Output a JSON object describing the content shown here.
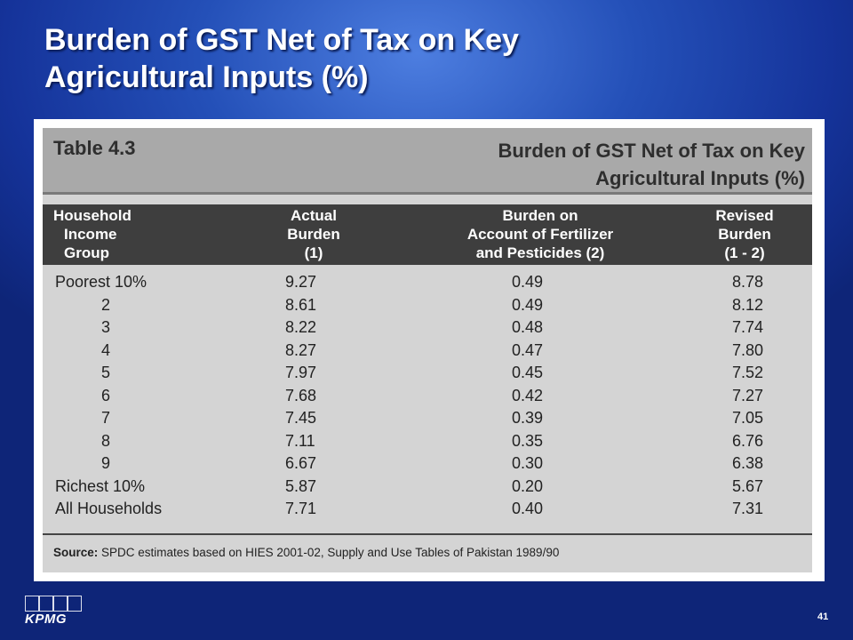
{
  "slide": {
    "title_line1": "Burden of GST Net of Tax on Key",
    "title_line2": "Agricultural Inputs (%)",
    "page_number": "41"
  },
  "table": {
    "number": "Table 4.3",
    "title_line1": "Burden of GST Net of Tax on Key",
    "title_line2": "Agricultural Inputs (%)",
    "headers": [
      [
        "Household",
        "Income",
        "Group"
      ],
      [
        "Actual",
        "Burden",
        "(1)"
      ],
      [
        "Burden on",
        "Account of Fertilizer",
        "and Pesticides (2)"
      ],
      [
        "Revised",
        "Burden",
        "(1 - 2)"
      ]
    ],
    "rows": [
      [
        "Poorest 10%",
        "9.27",
        "0.49",
        "8.78"
      ],
      [
        "2",
        "8.61",
        "0.49",
        "8.12"
      ],
      [
        "3",
        "8.22",
        "0.48",
        "7.74"
      ],
      [
        "4",
        "8.27",
        "0.47",
        "7.80"
      ],
      [
        "5",
        "7.97",
        "0.45",
        "7.52"
      ],
      [
        "6",
        "7.68",
        "0.42",
        "7.27"
      ],
      [
        "7",
        "7.45",
        "0.39",
        "7.05"
      ],
      [
        "8",
        "7.11",
        "0.35",
        "6.76"
      ],
      [
        "9",
        "6.67",
        "0.30",
        "6.38"
      ],
      [
        "Richest 10%",
        "5.87",
        "0.20",
        "5.67"
      ],
      [
        "All Households",
        "7.71",
        "0.40",
        "7.31"
      ]
    ],
    "source_label": "Source:",
    "source_text": " SPDC estimates based on HIES 2001-02, Supply and Use Tables of Pakistan 1989/90"
  },
  "logo": {
    "text": "KPMG"
  }
}
